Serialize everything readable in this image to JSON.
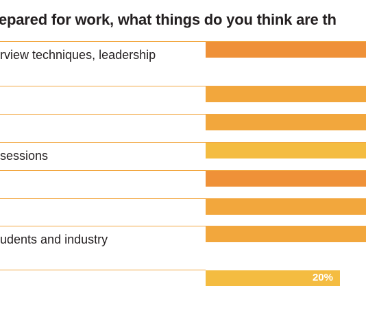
{
  "title": "epared for work, what things do you think are th",
  "chart_data": {
    "type": "bar",
    "orientation": "horizontal",
    "categories": [
      "rview techniques, leadership",
      "",
      "",
      "sessions",
      "",
      "",
      "udents and industry",
      ""
    ],
    "values": [
      null,
      null,
      null,
      null,
      null,
      null,
      null,
      20
    ],
    "value_labels": [
      "",
      "",
      "",
      "",
      "",
      "",
      "",
      "20%"
    ],
    "bar_colors": [
      "#ef9138",
      "#f2a73d",
      "#f2a73d",
      "#f4bc41",
      "#ef9138",
      "#f2a73d",
      "#f2a73d",
      "#f4bc41"
    ]
  }
}
